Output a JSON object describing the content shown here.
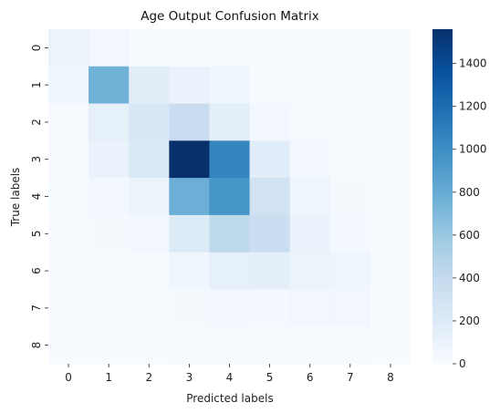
{
  "chart_data": {
    "type": "heatmap",
    "title": "Age Output Confusion Matrix",
    "xlabel": "Predicted labels",
    "ylabel": "True labels",
    "x_categories": [
      "0",
      "1",
      "2",
      "3",
      "4",
      "5",
      "6",
      "7",
      "8"
    ],
    "y_categories": [
      "0",
      "1",
      "2",
      "3",
      "4",
      "5",
      "6",
      "7",
      "8"
    ],
    "values": [
      [
        95,
        50,
        5,
        3,
        2,
        1,
        0,
        0,
        0
      ],
      [
        55,
        760,
        165,
        100,
        60,
        15,
        5,
        3,
        0
      ],
      [
        10,
        135,
        240,
        360,
        160,
        40,
        10,
        3,
        0
      ],
      [
        10,
        100,
        220,
        1560,
        1050,
        170,
        40,
        10,
        0
      ],
      [
        5,
        35,
        90,
        780,
        950,
        300,
        70,
        20,
        0
      ],
      [
        3,
        20,
        40,
        200,
        430,
        350,
        100,
        30,
        0
      ],
      [
        2,
        8,
        15,
        60,
        130,
        150,
        90,
        70,
        0
      ],
      [
        0,
        3,
        8,
        25,
        35,
        30,
        50,
        50,
        0
      ],
      [
        0,
        0,
        2,
        8,
        15,
        10,
        10,
        10,
        0
      ]
    ],
    "colormap": "Blues",
    "vmin": 0,
    "vmax": 1560,
    "colorbar_ticks": [
      0,
      200,
      400,
      600,
      800,
      1000,
      1200,
      1400
    ],
    "colorbar_tick_labels": [
      "0",
      "200",
      "400",
      "600",
      "800",
      "1000",
      "1200",
      "1400"
    ]
  }
}
